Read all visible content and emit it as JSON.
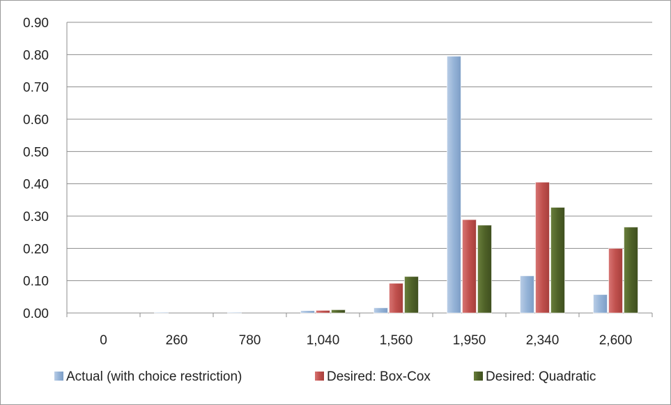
{
  "chart_data": {
    "type": "bar",
    "title": "",
    "xlabel": "",
    "ylabel": "",
    "categories": [
      "0",
      "260",
      "780",
      "1,040",
      "1,560",
      "1,950",
      "2,340",
      "2,600"
    ],
    "series": [
      {
        "name": "Actual (with choice restriction)",
        "color": "#95b3d7",
        "values": [
          0.0,
          0.001,
          0.001,
          0.007,
          0.016,
          0.795,
          0.115,
          0.057
        ]
      },
      {
        "name": "Desired: Box-Cox",
        "color": "#c0504d",
        "values": [
          0.0,
          0.0,
          0.0,
          0.008,
          0.092,
          0.289,
          0.405,
          0.2
        ]
      },
      {
        "name": "Desired: Quadratic",
        "color": "#4f6228",
        "values": [
          0.0,
          0.0,
          0.0,
          0.01,
          0.113,
          0.272,
          0.327,
          0.266
        ]
      }
    ],
    "y_ticks": [
      "0.00",
      "0.10",
      "0.20",
      "0.30",
      "0.40",
      "0.50",
      "0.60",
      "0.70",
      "0.80",
      "0.90"
    ],
    "ylim": [
      0,
      0.9
    ],
    "grid": true,
    "legend_position": "bottom"
  }
}
